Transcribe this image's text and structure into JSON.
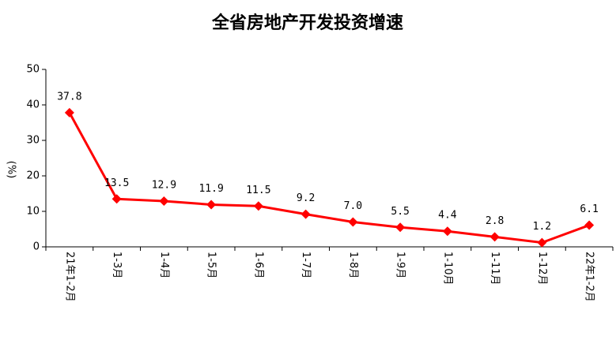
{
  "chart_data": {
    "type": "line",
    "title": "全省房地产开发投资增速",
    "y_label": "(%)",
    "categories": [
      "21年1-2月",
      "1-3月",
      "1-4月",
      "1-5月",
      "1-6月",
      "1-7月",
      "1-8月",
      "1-9月",
      "1-10月",
      "1-11月",
      "1-12月",
      "22年1-2月"
    ],
    "series": [
      {
        "name": "全省房地产开发投资增速",
        "color": "#ff0000",
        "values": [
          37.8,
          13.5,
          12.9,
          11.9,
          11.5,
          9.2,
          7.0,
          5.5,
          4.4,
          2.8,
          1.2,
          6.1
        ],
        "value_labels": [
          "37.8",
          "13.5",
          "12.9",
          "11.9",
          "11.5",
          "9.2",
          "7.0",
          "5.5",
          "4.4",
          "2.8",
          "1.2",
          "6.1"
        ]
      }
    ],
    "ylim": [
      0,
      50
    ],
    "yticks": [
      0,
      10,
      20,
      30,
      40,
      50
    ],
    "grid": false
  }
}
